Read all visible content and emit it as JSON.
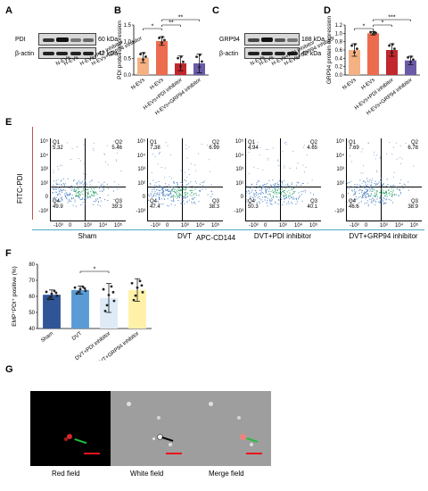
{
  "panels": {
    "A": {
      "letter": "A",
      "rows": [
        {
          "label": "PDI",
          "kda": "60 kDa"
        },
        {
          "label": "β-actin",
          "kda": "42 kDa"
        }
      ],
      "lanes": [
        "N-EVs",
        "H-EVs",
        "H-EVs+PDI inhibitor",
        "H-EVs+GRP94 inhibitor"
      ]
    },
    "B": {
      "letter": "B",
      "ylabel": "PDI protein expression",
      "yticks": [
        "0.0",
        "0.5",
        "1.0",
        "1.5"
      ],
      "sig": [
        "*",
        "**",
        "**"
      ],
      "chart_data": {
        "type": "bar",
        "categories": [
          "N-EVs",
          "H-EVs",
          "H-EVs+PDI inhibitor",
          "H-EVs+GRP94 inhibitor"
        ],
        "values": [
          0.52,
          1.02,
          0.35,
          0.35
        ],
        "errors": [
          0.15,
          0.13,
          0.22,
          0.28
        ],
        "ylabel": "PDI protein expression",
        "ylim": [
          0,
          1.5
        ],
        "colors": [
          "#f4b183",
          "#ec6c4f",
          "#c1272d",
          "#6b5aa8"
        ]
      }
    },
    "C": {
      "letter": "C",
      "rows": [
        {
          "label": "GRP94",
          "kda": "188 kDa"
        },
        {
          "label": "β-actin",
          "kda": "42 kDa"
        }
      ],
      "lanes": [
        "N-EVs",
        "H-EVs",
        "H-EVs+PDI inhibitor",
        "H-EVs+GRP94 inhibitor"
      ]
    },
    "D": {
      "letter": "D",
      "ylabel": "GRP94 protein expression",
      "yticks": [
        "0.0",
        "0.2",
        "0.4",
        "0.6",
        "0.8",
        "1.0",
        "1.2"
      ],
      "sig": [
        "*",
        "*",
        "***"
      ],
      "chart_data": {
        "type": "bar",
        "categories": [
          "N-EVs",
          "H-EVs",
          "H-EVs+PDI inhibitor",
          "H-EVs+GRP94 inhibitor"
        ],
        "values": [
          0.6,
          1.0,
          0.6,
          0.35
        ],
        "errors": [
          0.15,
          0.04,
          0.15,
          0.1
        ],
        "ylabel": "GRP94 protein expression",
        "ylim": [
          0,
          1.2
        ],
        "colors": [
          "#f4b183",
          "#ec6c4f",
          "#c1272d",
          "#6b5aa8"
        ]
      }
    },
    "E": {
      "letter": "E",
      "ylabel": "FITC-PDI",
      "xlabel": "APC-CD144",
      "yticks": [
        "10⁵",
        "10⁴",
        "10³",
        "10²",
        "0",
        "-10³"
      ],
      "xticks": [
        "-10³",
        "0",
        "10³",
        "10⁴",
        "10⁵"
      ],
      "plots": [
        {
          "name": "Sham",
          "q1": "Q1",
          "q1v": "5.32",
          "q2": "Q2",
          "q2v": "5.46",
          "q3": "Q3",
          "q3v": "39.3",
          "q4": "Q4",
          "q4v": "49.9"
        },
        {
          "name": "DVT",
          "q1": "Q1",
          "q1v": "7.38",
          "q2": "Q2",
          "q2v": "6.99",
          "q3": "Q3",
          "q3v": "38.3",
          "q4": "Q4",
          "q4v": "47.4"
        },
        {
          "name": "DVT+PDI inhibitor",
          "q1": "Q1",
          "q1v": "4.94",
          "q2": "Q2",
          "q2v": "4.65",
          "q3": "Q3",
          "q3v": "40.1",
          "q4": "Q4",
          "q4v": "50.3"
        },
        {
          "name": "DVT+GRP94 inhibitor",
          "q1": "Q1",
          "q1v": "7.69",
          "q2": "Q2",
          "q2v": "6.78",
          "q3": "Q3",
          "q3v": "38.9",
          "q4": "Q4",
          "q4v": "46.6"
        }
      ]
    },
    "F": {
      "letter": "F",
      "ylabel": "EMP⁺PDI⁺ positive (%)",
      "yticks": [
        "40",
        "50",
        "60",
        "70",
        "80"
      ],
      "sig": [
        "*"
      ],
      "chart_data": {
        "type": "bar",
        "categories": [
          "Sham",
          "DVT",
          "DVT+PDI inhibitor",
          "DVT+GRP94 inhibitor"
        ],
        "values": [
          61,
          64,
          59,
          64
        ],
        "errors": [
          3,
          2.5,
          9,
          7
        ],
        "ylabel": "EMP⁺PDI⁺ positive (%)",
        "ylim": [
          40,
          80
        ],
        "colors": [
          "#2f5597",
          "#5b9bd5",
          "#deebf7",
          "#fff2a8"
        ]
      }
    },
    "G": {
      "letter": "G",
      "fields": [
        "Red field",
        "White field",
        "Merge field"
      ]
    }
  }
}
